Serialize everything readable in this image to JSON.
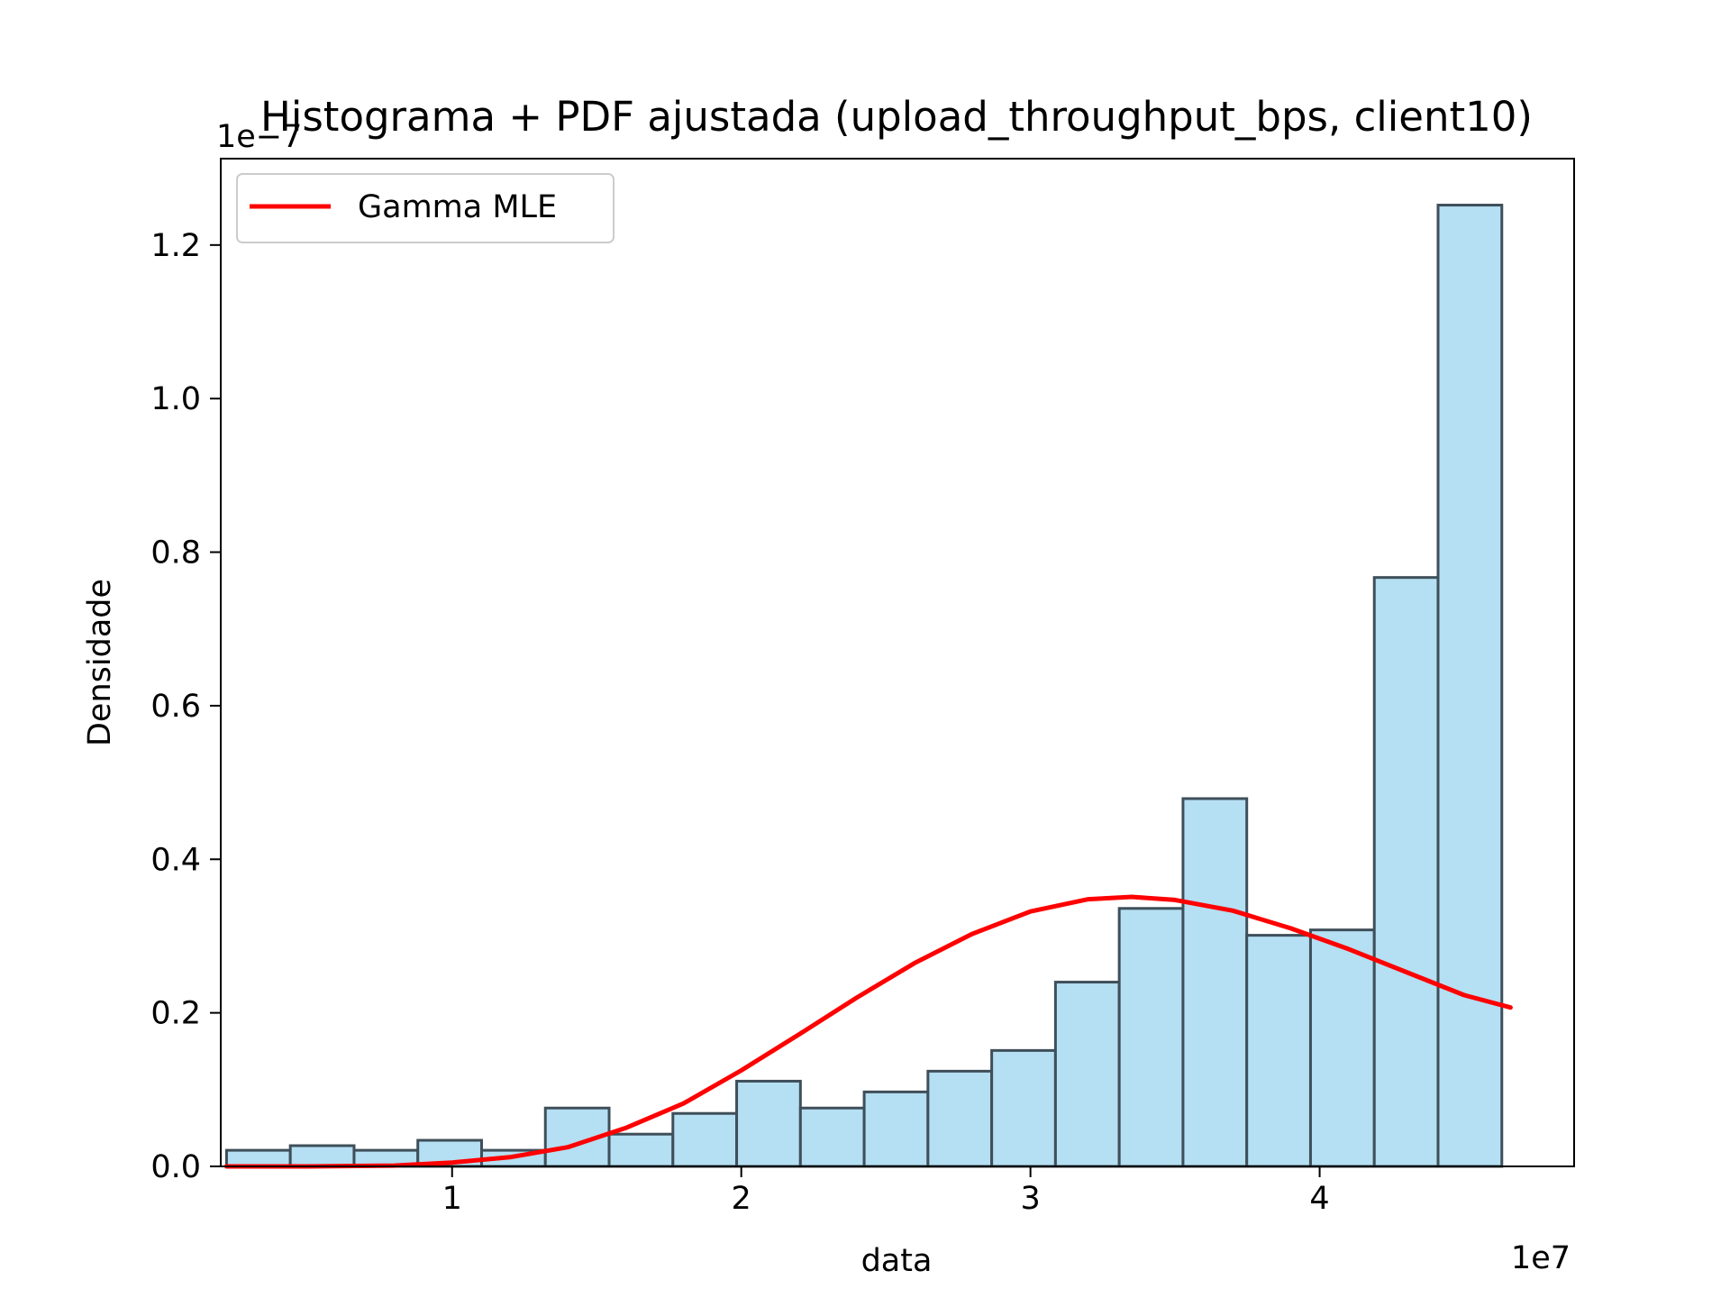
{
  "chart_data": {
    "type": "bar",
    "title": "Histograma + PDF ajustada (upload_throughput_bps, client10)",
    "xlabel": "data",
    "ylabel": "Densidade",
    "x_offset_label": "1e7",
    "y_offset_label": "1e−7",
    "xlim": [
      0.2,
      4.88
    ],
    "ylim": [
      0.0,
      1.3125
    ],
    "xticks": [
      1,
      2,
      3,
      4
    ],
    "xtick_labels": [
      "1",
      "2",
      "3",
      "4"
    ],
    "yticks": [
      0.0,
      0.2,
      0.4,
      0.6,
      0.8,
      1.0,
      1.2
    ],
    "ytick_labels": [
      "0.0",
      "0.2",
      "0.4",
      "0.6",
      "0.8",
      "1.0",
      "1.2"
    ],
    "grid": false,
    "legend_position": "upper-left",
    "bin_edges": [
      0.22,
      0.4405,
      0.661,
      0.8815,
      1.102,
      1.3225,
      1.543,
      1.7635,
      1.984,
      2.2045,
      2.425,
      2.6455,
      2.866,
      3.0865,
      3.307,
      3.5275,
      3.748,
      3.9685,
      4.189,
      4.4095,
      4.63
    ],
    "bin_values": [
      0.021,
      0.027,
      0.021,
      0.034,
      0.021,
      0.076,
      0.042,
      0.069,
      0.111,
      0.076,
      0.097,
      0.124,
      0.151,
      0.24,
      0.336,
      0.479,
      0.301,
      0.308,
      0.767,
      1.252
    ],
    "series": [
      {
        "name": "Gamma MLE",
        "type": "line",
        "color": "#ff0000",
        "x": [
          0.22,
          0.5,
          0.8,
          1.0,
          1.2,
          1.4,
          1.6,
          1.8,
          2.0,
          2.2,
          2.4,
          2.6,
          2.8,
          3.0,
          3.2,
          3.35,
          3.5,
          3.7,
          3.9,
          4.1,
          4.3,
          4.5,
          4.66
        ],
        "y": [
          0.0,
          0.0,
          0.001,
          0.005,
          0.012,
          0.025,
          0.05,
          0.082,
          0.125,
          0.172,
          0.22,
          0.265,
          0.303,
          0.332,
          0.348,
          0.351,
          0.347,
          0.333,
          0.31,
          0.283,
          0.253,
          0.223,
          0.207
        ]
      }
    ],
    "colors": {
      "bar_fill": "#b5dff2",
      "bar_edge": "#3f4f5a",
      "line": "#ff0000",
      "axes": "#000000",
      "legend_edge": "#cccccc"
    }
  }
}
